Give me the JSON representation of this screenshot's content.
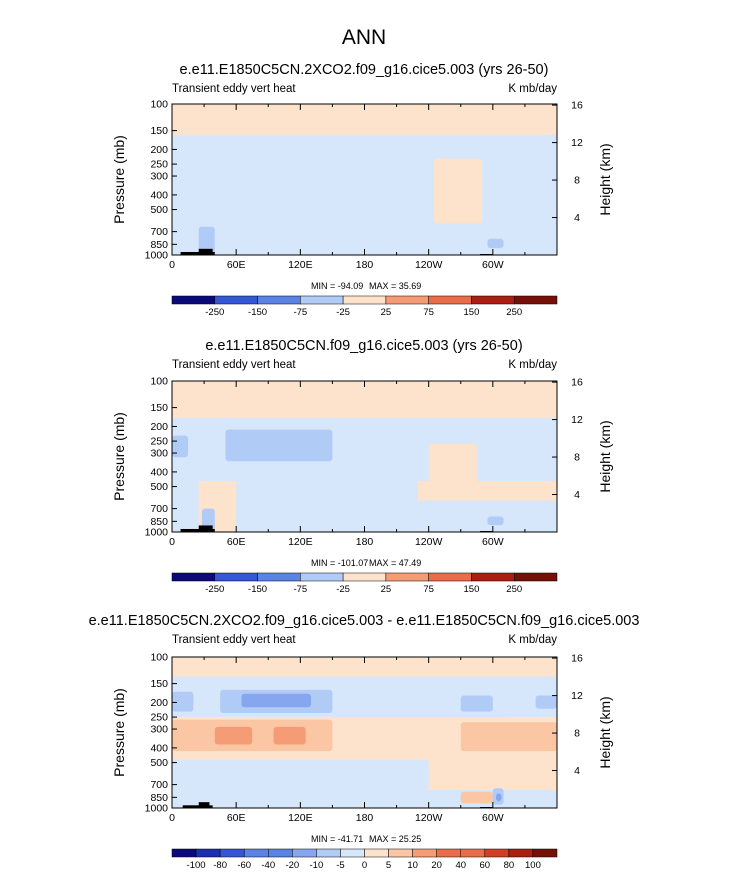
{
  "figure_title": "ANN",
  "colors": {
    "pos_scale": [
      "#fde3cc",
      "#fbc6a4",
      "#f59c76",
      "#ea6d4b",
      "#d23f26",
      "#aa1f12",
      "#761006"
    ],
    "neg_scale": [
      "#d6e6fb",
      "#b0ccf6",
      "#86a7ef",
      "#5b83e6",
      "#3557d6",
      "#1a2fb2",
      "#0a0a7c"
    ],
    "topography": "#000000"
  },
  "chart_data": [
    {
      "type": "heatmap",
      "title": "e.e11.E1850C5CN.2XCO2.f09_g16.cice5.003 (yrs 26-50)",
      "left_label": "Transient eddy vert heat",
      "right_label": "K mb/day",
      "ylabel": "Pressure (mb)",
      "ylabel_right": "Height (km)",
      "x_ticks": [
        "0",
        "60E",
        "120E",
        "180",
        "120W",
        "60W"
      ],
      "y_ticks": [
        "100",
        "150",
        "200",
        "250",
        "300",
        "400",
        "500",
        "700",
        "850",
        "1000"
      ],
      "y_ticks_right": [
        "4",
        "8",
        "12",
        "16"
      ],
      "min_label": "MIN = -94.09",
      "max_label": "MAX =  35.69",
      "min": -94.09,
      "max": 35.69,
      "colorbar": [
        "-250",
        "-150",
        "-75",
        "-25",
        "25",
        "75",
        "150",
        "250"
      ],
      "background_level": 1,
      "regions": [
        {
          "lon": [
            0,
            360
          ],
          "p": [
            100,
            160
          ],
          "level": 1
        },
        {
          "lon": [
            0,
            20
          ],
          "p": [
            185,
            320
          ],
          "level": -1
        },
        {
          "lon": [
            50,
            150
          ],
          "p": [
            200,
            320
          ],
          "level": -2
        },
        {
          "lon": [
            265,
            295
          ],
          "p": [
            170,
            520
          ],
          "level": -1
        },
        {
          "lon": [
            0,
            360
          ],
          "p": [
            160,
            520
          ],
          "level": -1
        },
        {
          "lon": [
            0,
            360
          ],
          "p": [
            520,
            1000
          ],
          "level": -1
        },
        {
          "lon": [
            245,
            290
          ],
          "p": [
            230,
            620
          ],
          "level": 1
        },
        {
          "lon": [
            25,
            40
          ],
          "p": [
            650,
            1000
          ],
          "level": -2
        },
        {
          "lon": [
            295,
            310
          ],
          "p": [
            780,
            900
          ],
          "level": -2
        }
      ],
      "topography": [
        {
          "lon": [
            8,
            40
          ],
          "p": 955
        },
        {
          "lon": [
            25,
            38
          ],
          "p": 910
        },
        {
          "lon": [
            288,
            300
          ],
          "p": 985
        }
      ]
    },
    {
      "type": "heatmap",
      "title": "e.e11.E1850C5CN.f09_g16.cice5.003 (yrs 26-50)",
      "left_label": "Transient eddy vert heat",
      "right_label": "K mb/day",
      "ylabel": "Pressure (mb)",
      "ylabel_right": "Height (km)",
      "x_ticks": [
        "0",
        "60E",
        "120E",
        "180",
        "120W",
        "60W"
      ],
      "y_ticks": [
        "100",
        "150",
        "200",
        "250",
        "300",
        "400",
        "500",
        "700",
        "850",
        "1000"
      ],
      "y_ticks_right": [
        "4",
        "8",
        "12",
        "16"
      ],
      "min_label": "MIN = -101.07",
      "max_label": "MAX =  47.49",
      "min": -101.07,
      "max": 47.49,
      "colorbar": [
        "-250",
        "-150",
        "-75",
        "-25",
        "25",
        "75",
        "150",
        "250"
      ],
      "background_level": 1,
      "regions": [
        {
          "lon": [
            0,
            360
          ],
          "p": [
            100,
            175
          ],
          "level": 1
        },
        {
          "lon": [
            0,
            360
          ],
          "p": [
            175,
            460
          ],
          "level": -1
        },
        {
          "lon": [
            0,
            25
          ],
          "p": [
            460,
            1000
          ],
          "level": -1
        },
        {
          "lon": [
            60,
            230
          ],
          "p": [
            460,
            1000
          ],
          "level": -1
        },
        {
          "lon": [
            230,
            360
          ],
          "p": [
            620,
            1000
          ],
          "level": -1
        },
        {
          "lon": [
            50,
            150
          ],
          "p": [
            210,
            340
          ],
          "level": -2
        },
        {
          "lon": [
            0,
            15
          ],
          "p": [
            230,
            320
          ],
          "level": -2
        },
        {
          "lon": [
            240,
            285
          ],
          "p": [
            260,
            560
          ],
          "level": 1
        },
        {
          "lon": [
            28,
            40
          ],
          "p": [
            700,
            1000
          ],
          "level": -2
        },
        {
          "lon": [
            295,
            310
          ],
          "p": [
            790,
            900
          ],
          "level": -2
        }
      ],
      "topography": [
        {
          "lon": [
            8,
            40
          ],
          "p": 955
        },
        {
          "lon": [
            25,
            38
          ],
          "p": 905
        },
        {
          "lon": [
            288,
            300
          ],
          "p": 985
        }
      ]
    },
    {
      "type": "heatmap",
      "title": "e.e11.E1850C5CN.2XCO2.f09_g16.cice5.003 - e.e11.E1850C5CN.f09_g16.cice5.003",
      "left_label": "Transient eddy vert heat",
      "right_label": "K mb/day",
      "ylabel": "Pressure (mb)",
      "ylabel_right": "Height (km)",
      "x_ticks": [
        "0",
        "60E",
        "120E",
        "180",
        "120W",
        "60W"
      ],
      "y_ticks": [
        "100",
        "150",
        "200",
        "250",
        "300",
        "400",
        "500",
        "700",
        "850",
        "1000"
      ],
      "y_ticks_right": [
        "4",
        "8",
        "12",
        "16"
      ],
      "min_label": "MIN = -41.71",
      "max_label": "MAX =  25.25",
      "min": -41.71,
      "max": 25.25,
      "colorbar": [
        "-100",
        "-80",
        "-60",
        "-40",
        "-20",
        "-10",
        "-5",
        "0",
        "5",
        "10",
        "20",
        "40",
        "60",
        "80",
        "100"
      ],
      "background_level": 1,
      "regions": [
        {
          "lon": [
            0,
            360
          ],
          "p": [
            100,
            135
          ],
          "level": 1
        },
        {
          "lon": [
            0,
            360
          ],
          "p": [
            135,
            250
          ],
          "level": -1
        },
        {
          "lon": [
            0,
            20
          ],
          "p": [
            170,
            230
          ],
          "level": -2
        },
        {
          "lon": [
            45,
            150
          ],
          "p": [
            165,
            235
          ],
          "level": -2
        },
        {
          "lon": [
            65,
            130
          ],
          "p": [
            175,
            215
          ],
          "level": -3
        },
        {
          "lon": [
            270,
            300
          ],
          "p": [
            180,
            230
          ],
          "level": -2
        },
        {
          "lon": [
            340,
            360
          ],
          "p": [
            180,
            220
          ],
          "level": -2
        },
        {
          "lon": [
            0,
            360
          ],
          "p": [
            250,
            480
          ],
          "level": 1
        },
        {
          "lon": [
            0,
            150
          ],
          "p": [
            260,
            420
          ],
          "level": 2
        },
        {
          "lon": [
            40,
            75
          ],
          "p": [
            290,
            380
          ],
          "level": 3
        },
        {
          "lon": [
            95,
            125
          ],
          "p": [
            290,
            380
          ],
          "level": 3
        },
        {
          "lon": [
            270,
            360
          ],
          "p": [
            270,
            420
          ],
          "level": 2
        },
        {
          "lon": [
            0,
            240
          ],
          "p": [
            480,
            760
          ],
          "level": -1
        },
        {
          "lon": [
            0,
            360
          ],
          "p": [
            760,
            1000
          ],
          "level": -1
        },
        {
          "lon": [
            270,
            300
          ],
          "p": [
            780,
            930
          ],
          "level": 2
        },
        {
          "lon": [
            300,
            310
          ],
          "p": [
            740,
            950
          ],
          "level": -2
        },
        {
          "lon": [
            303,
            308
          ],
          "p": [
            800,
            900
          ],
          "level": -3
        }
      ],
      "topography": [
        {
          "lon": [
            10,
            38
          ],
          "p": 960
        },
        {
          "lon": [
            25,
            35
          ],
          "p": 915
        },
        {
          "lon": [
            288,
            300
          ],
          "p": 985
        }
      ]
    }
  ]
}
